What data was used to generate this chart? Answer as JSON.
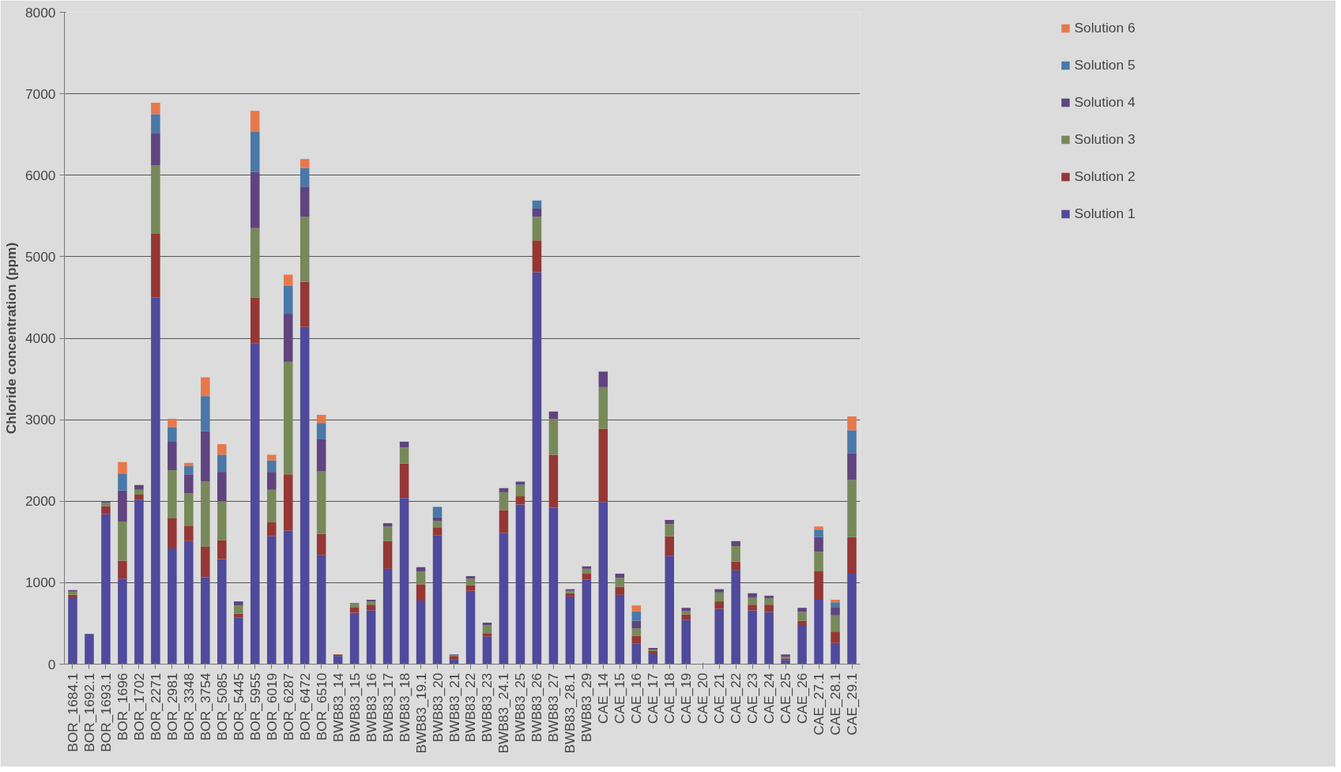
{
  "chart_data": {
    "type": "bar",
    "stacked": true,
    "ylabel": "Chloride concentration (ppm)",
    "ylim": [
      0,
      8000
    ],
    "yticks": [
      0,
      1000,
      2000,
      3000,
      4000,
      5000,
      6000,
      7000,
      8000
    ],
    "grid": "y",
    "legend": "top right",
    "categories": [
      "BOR_1684.1",
      "BOR_1692.1",
      "BOR_1693.1",
      "BOR_1696",
      "BOR_1702",
      "BOR_2271",
      "BOR_2981",
      "BOR_3348",
      "BOR_3754",
      "BOR_5085",
      "BOR_5445",
      "BOR_5955",
      "BOR_6019",
      "BOR_6287",
      "BOR_6472",
      "BOR_6510",
      "BWB83_14",
      "BWB83_15",
      "BWB83_16",
      "BWB83_17",
      "BWB83_18",
      "BWB83_19.1",
      "BWB83_20",
      "BWB83_21",
      "BWB83_22",
      "BWB83_23",
      "BWB83_24.1",
      "BWB83_25",
      "BWB83_26",
      "BWB83_27",
      "BWB83_28.1",
      "BWB83_29",
      "CAE_14",
      "CAE_15",
      "CAE_16",
      "CAE_17",
      "CAE_18",
      "CAE_19",
      "CAE_20",
      "CAE_21",
      "CAE_22",
      "CAE_23",
      "CAE_24",
      "CAE_25",
      "CAE_26",
      "CAE_27.1",
      "CAE_28.1",
      "CAE_29.1"
    ],
    "series": [
      {
        "name": "Solution 1",
        "color": "#4f4a9b",
        "values": [
          810,
          370,
          1840,
          1050,
          2020,
          4500,
          1420,
          1510,
          1070,
          1290,
          570,
          3940,
          1570,
          1640,
          4140,
          1340,
          100,
          630,
          660,
          1170,
          2040,
          780,
          1580,
          60,
          900,
          340,
          1610,
          1960,
          4810,
          1920,
          830,
          1040,
          1990,
          850,
          250,
          130,
          1330,
          540,
          0,
          680,
          1150,
          660,
          640,
          50,
          480,
          790,
          260,
          1110
        ]
      },
      {
        "name": "Solution 2",
        "color": "#953735",
        "values": [
          40,
          0,
          100,
          220,
          60,
          780,
          370,
          190,
          370,
          230,
          50,
          560,
          170,
          690,
          550,
          260,
          20,
          70,
          70,
          340,
          420,
          200,
          100,
          40,
          70,
          40,
          280,
          100,
          390,
          650,
          40,
          70,
          900,
          100,
          100,
          30,
          240,
          70,
          0,
          90,
          110,
          70,
          90,
          20,
          50,
          350,
          140,
          450
        ]
      },
      {
        "name": "Solution 3",
        "color": "#77895a",
        "values": [
          40,
          0,
          40,
          480,
          60,
          840,
          590,
          400,
          800,
          480,
          100,
          850,
          400,
          1380,
          800,
          770,
          0,
          40,
          40,
          180,
          200,
          160,
          80,
          10,
          80,
          100,
          220,
          140,
          290,
          440,
          30,
          60,
          510,
          110,
          90,
          20,
          150,
          40,
          0,
          110,
          190,
          90,
          80,
          20,
          110,
          240,
          200,
          700
        ]
      },
      {
        "name": "Solution 4",
        "color": "#60447f",
        "values": [
          20,
          0,
          20,
          380,
          60,
          400,
          350,
          230,
          620,
          360,
          50,
          690,
          220,
          590,
          370,
          390,
          0,
          10,
          20,
          40,
          70,
          50,
          40,
          10,
          30,
          30,
          50,
          40,
          100,
          90,
          20,
          30,
          190,
          50,
          90,
          20,
          50,
          40,
          0,
          40,
          60,
          50,
          30,
          30,
          50,
          180,
          100,
          330
        ]
      },
      {
        "name": "Solution 5",
        "color": "#4a78a8",
        "values": [
          0,
          0,
          0,
          210,
          0,
          230,
          180,
          100,
          430,
          210,
          0,
          490,
          140,
          340,
          230,
          200,
          0,
          0,
          0,
          0,
          0,
          0,
          130,
          0,
          0,
          0,
          0,
          0,
          100,
          0,
          0,
          0,
          0,
          0,
          120,
          0,
          0,
          0,
          0,
          0,
          0,
          0,
          0,
          0,
          0,
          90,
          60,
          280
        ]
      },
      {
        "name": "Solution 6",
        "color": "#e8784a",
        "values": [
          0,
          0,
          0,
          140,
          0,
          140,
          100,
          40,
          230,
          130,
          0,
          260,
          70,
          140,
          110,
          100,
          0,
          0,
          0,
          0,
          0,
          0,
          0,
          0,
          0,
          0,
          0,
          0,
          0,
          0,
          0,
          0,
          0,
          0,
          70,
          0,
          0,
          0,
          0,
          0,
          0,
          0,
          0,
          0,
          0,
          40,
          30,
          170
        ]
      }
    ]
  }
}
